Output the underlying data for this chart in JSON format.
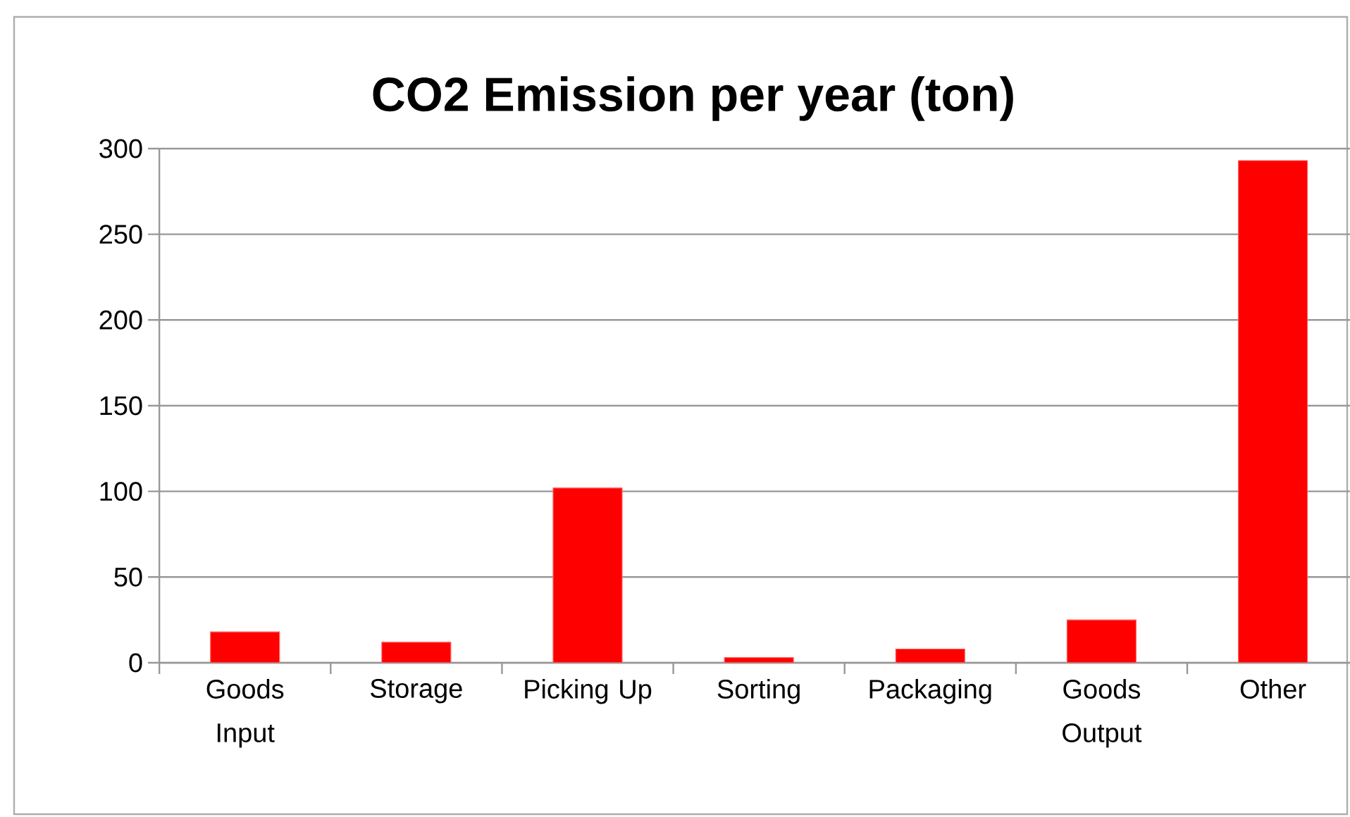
{
  "chart_data": {
    "type": "bar",
    "title": "CO2 Emission per year (ton)",
    "categories": [
      "Goods Input",
      "Storage",
      "Picking Up",
      "Sorting",
      "Packaging",
      "Goods Output",
      "Other"
    ],
    "values": [
      18,
      12,
      102,
      3,
      8,
      25,
      293
    ],
    "color": "#ff0000",
    "ylim": [
      0,
      300
    ],
    "yticks": [
      0,
      50,
      100,
      150,
      200,
      250,
      300
    ],
    "grid": "y"
  }
}
